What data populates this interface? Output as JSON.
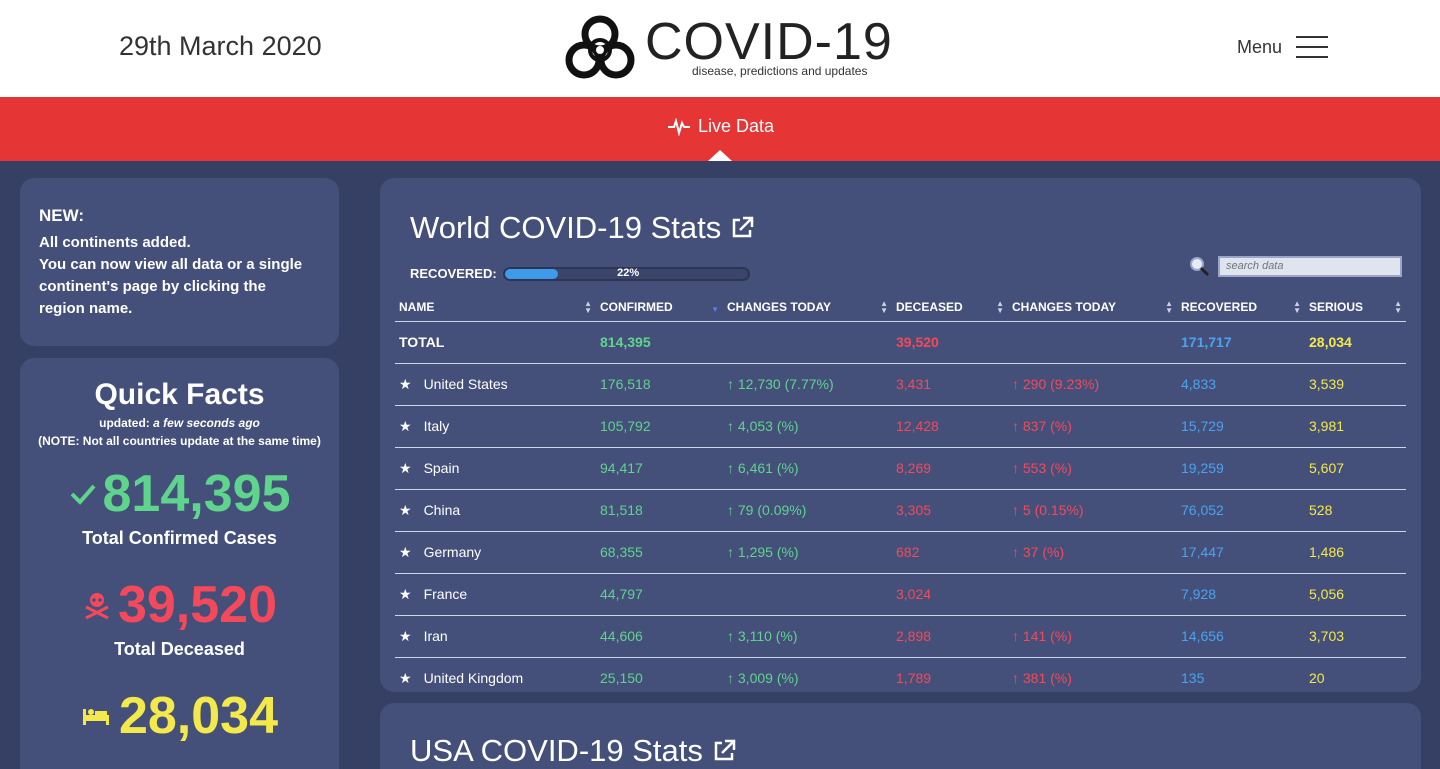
{
  "header": {
    "date": "29th March 2020",
    "logo_title": "COVID-19",
    "logo_subtitle": "disease, predictions and updates",
    "menu_label": "Menu"
  },
  "nav": {
    "live_tab": "Live Data"
  },
  "news": {
    "title": "NEW:",
    "lines": [
      "All continents added.",
      "You can now view all data or a single",
      "continent's page by clicking the",
      "region name."
    ]
  },
  "quick_facts": {
    "title": "Quick Facts",
    "updated_prefix": "updated:",
    "updated_value": "a few seconds ago",
    "note": "(NOTE: Not all countries update at the same time)",
    "confirmed": "814,395",
    "confirmed_label": "Total Confirmed Cases",
    "deceased": "39,520",
    "deceased_label": "Total Deceased",
    "serious": "28,034"
  },
  "world": {
    "title": "World COVID-19 Stats",
    "recovered_label": "RECOVERED:",
    "recovered_percent": "22%",
    "recovered_fraction": 0.22,
    "search_placeholder": "search data",
    "columns": [
      "NAME",
      "CONFIRMED",
      "CHANGES TODAY",
      "DECEASED",
      "CHANGES TODAY",
      "RECOVERED",
      "SERIOUS"
    ],
    "total": {
      "name": "TOTAL",
      "confirmed": "814,395",
      "deceased": "39,520",
      "recovered": "171,717",
      "serious": "28,034"
    },
    "rows": [
      {
        "name": "United States",
        "confirmed": "176,518",
        "conf_change": "↑ 12,730 (7.77%)",
        "deceased": "3,431",
        "dec_change": "↑ 290 (9.23%)",
        "recovered": "4,833",
        "serious": "3,539"
      },
      {
        "name": "Italy",
        "confirmed": "105,792",
        "conf_change": "↑ 4,053 (%)",
        "deceased": "12,428",
        "dec_change": "↑ 837 (%)",
        "recovered": "15,729",
        "serious": "3,981"
      },
      {
        "name": "Spain",
        "confirmed": "94,417",
        "conf_change": "↑ 6,461 (%)",
        "deceased": "8,269",
        "dec_change": "↑ 553 (%)",
        "recovered": "19,259",
        "serious": "5,607"
      },
      {
        "name": "China",
        "confirmed": "81,518",
        "conf_change": "↑ 79 (0.09%)",
        "deceased": "3,305",
        "dec_change": "↑ 5 (0.15%)",
        "recovered": "76,052",
        "serious": "528"
      },
      {
        "name": "Germany",
        "confirmed": "68,355",
        "conf_change": "↑ 1,295 (%)",
        "deceased": "682",
        "dec_change": "↑ 37 (%)",
        "recovered": "17,447",
        "serious": "1,486"
      },
      {
        "name": "France",
        "confirmed": "44,797",
        "conf_change": "",
        "deceased": "3,024",
        "dec_change": "",
        "recovered": "7,928",
        "serious": "5,056"
      },
      {
        "name": "Iran",
        "confirmed": "44,606",
        "conf_change": "↑ 3,110 (%)",
        "deceased": "2,898",
        "dec_change": "↑ 141 (%)",
        "recovered": "14,656",
        "serious": "3,703"
      },
      {
        "name": "United Kingdom",
        "confirmed": "25,150",
        "conf_change": "↑ 3,009 (%)",
        "deceased": "1,789",
        "dec_change": "↑ 381 (%)",
        "recovered": "135",
        "serious": "20"
      }
    ]
  },
  "usa": {
    "title": "USA COVID-19 Stats"
  },
  "colors": {
    "confirmed": "#5fd48d",
    "deceased": "#f4495a",
    "recovered": "#4aa3ef",
    "serious": "#f4e94a",
    "bar": "#e53535",
    "card": "#44507a",
    "bg": "#354064"
  },
  "icons": [
    "biohazard-icon",
    "menu-icon",
    "heartbeat-icon",
    "external-link-icon",
    "search-icon",
    "star-icon",
    "checkmark-icon",
    "skull-crossbones-icon",
    "bed-icon",
    "sort-icon"
  ]
}
